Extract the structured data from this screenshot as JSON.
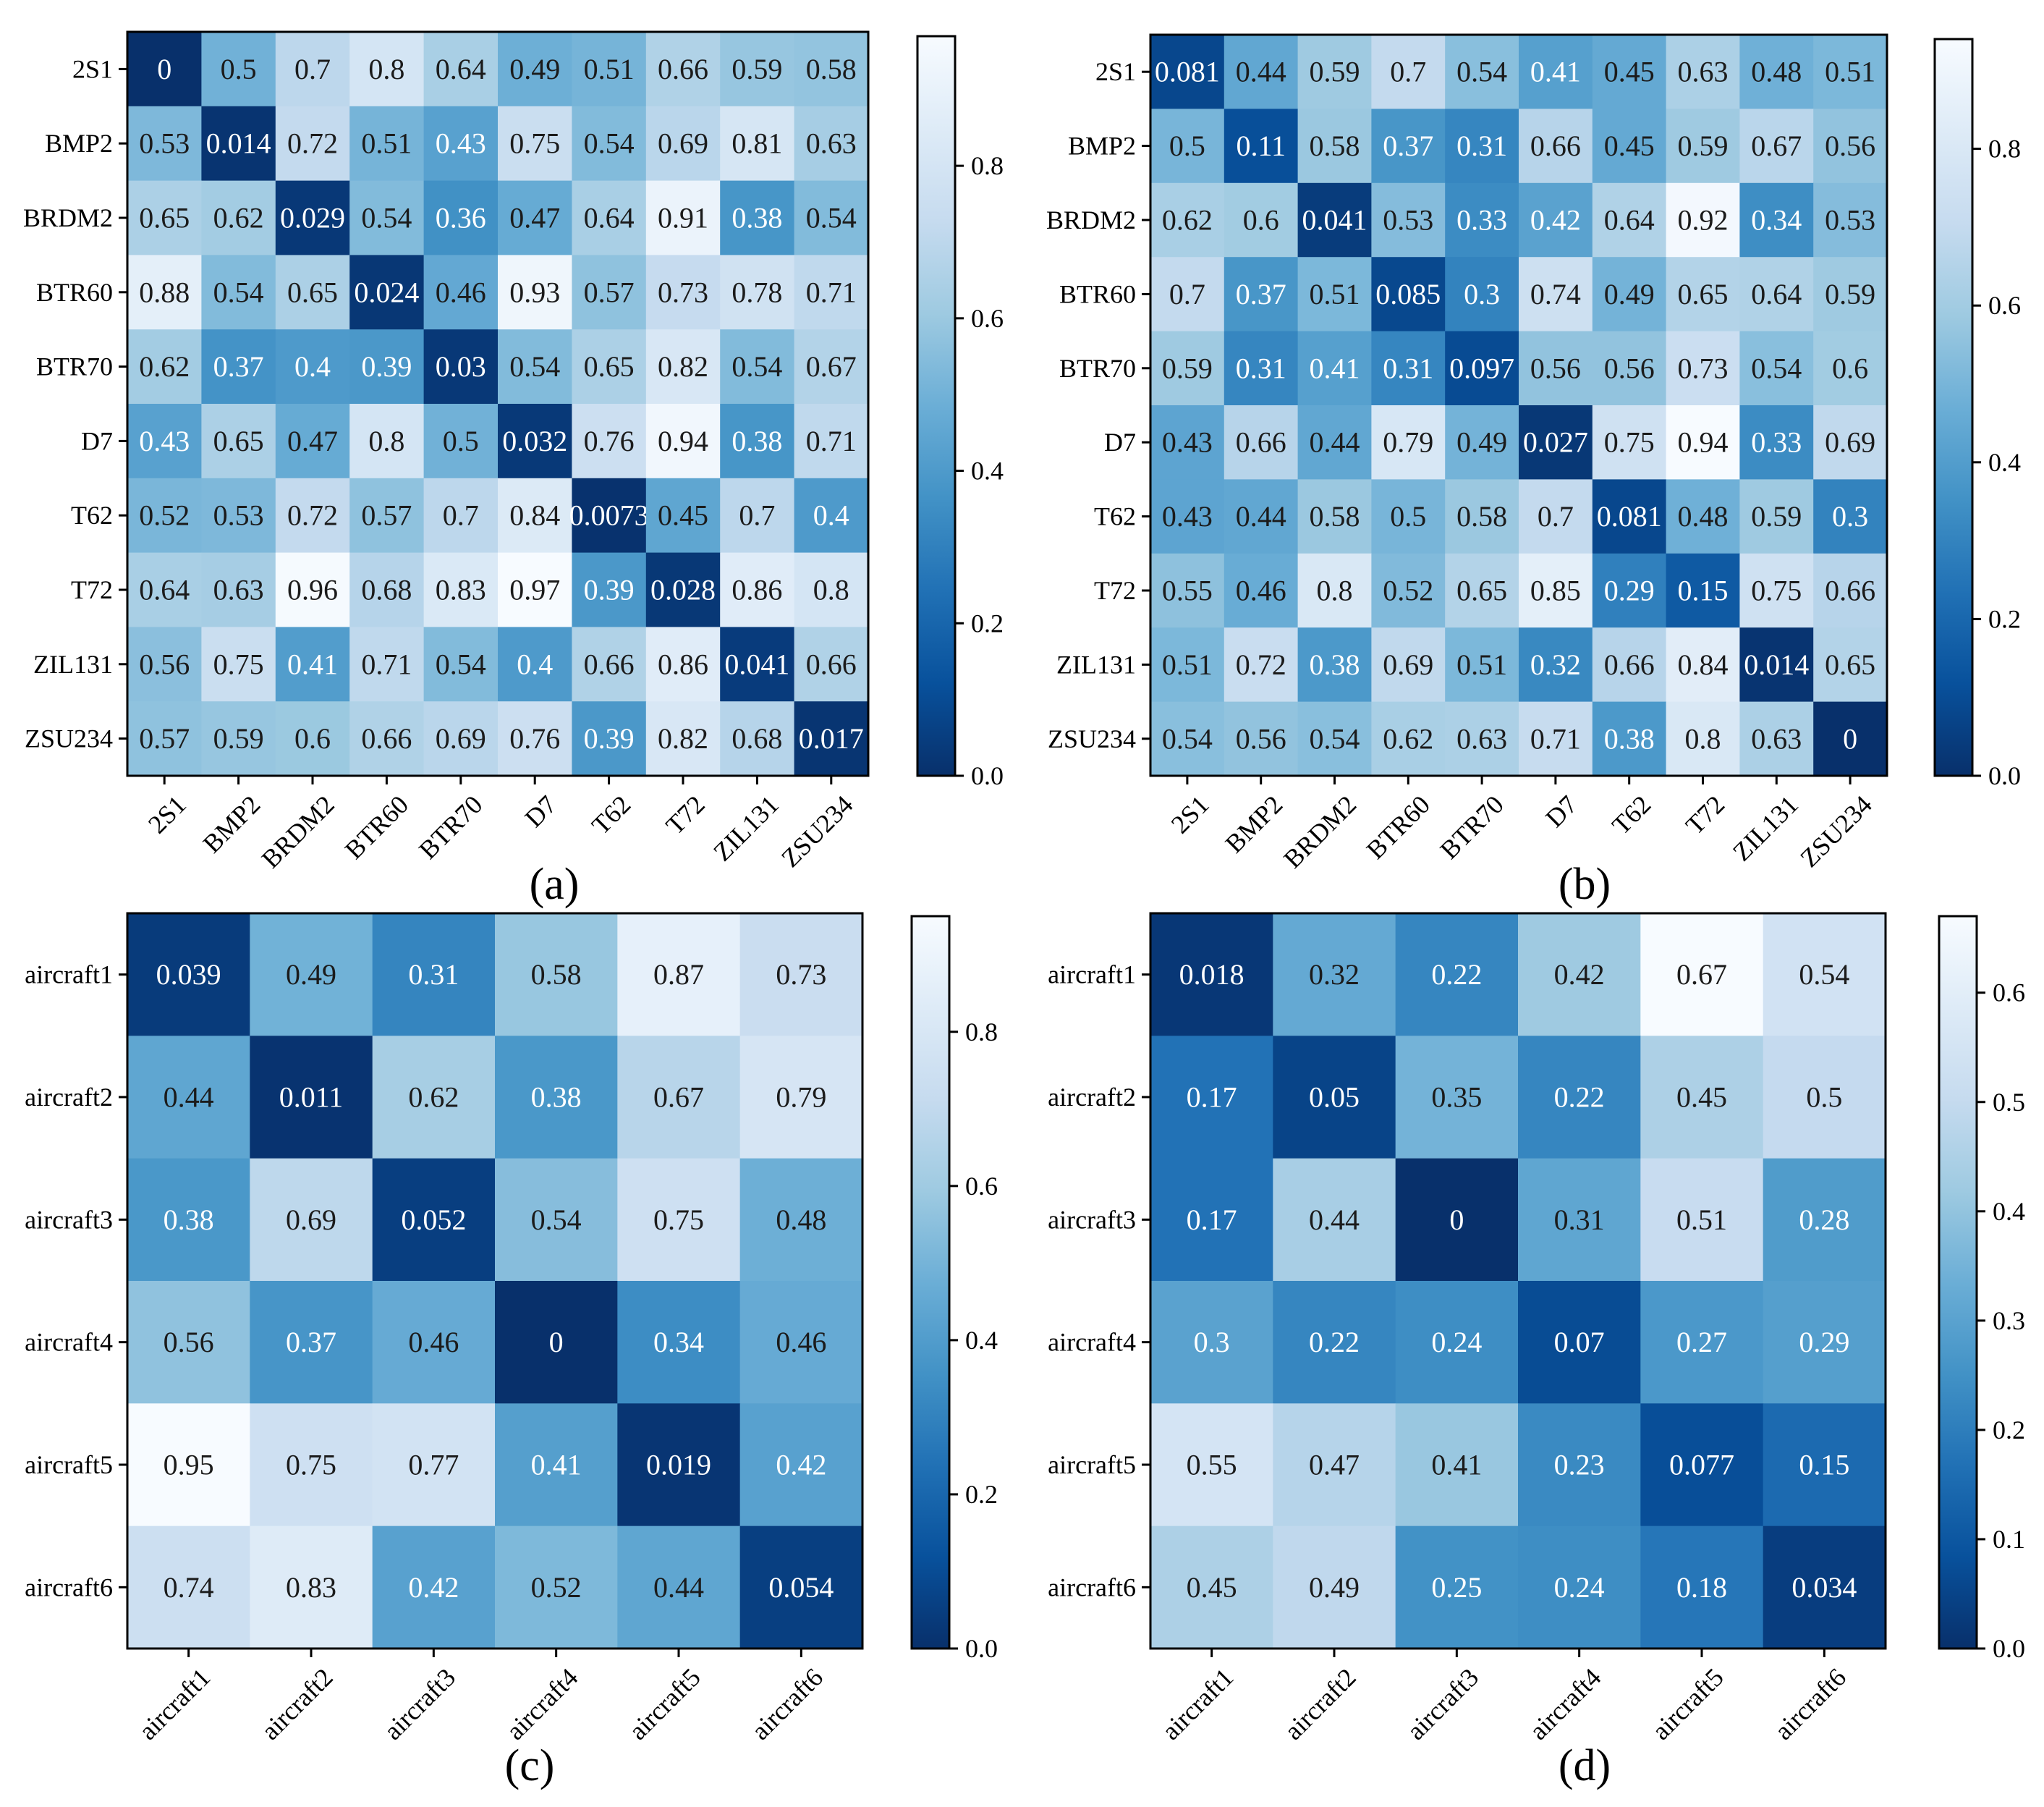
{
  "chart_data": [
    {
      "type": "heatmap",
      "panel_label": "(a)",
      "labels": [
        "2S1",
        "BMP2",
        "BRDM2",
        "BTR60",
        "BTR70",
        "D7",
        "T62",
        "T72",
        "ZIL131",
        "ZSU234"
      ],
      "values": [
        [
          "0",
          "0.5",
          "0.7",
          "0.8",
          "0.64",
          "0.49",
          "0.51",
          "0.66",
          "0.59",
          "0.58"
        ],
        [
          "0.53",
          "0.014",
          "0.72",
          "0.51",
          "0.43",
          "0.75",
          "0.54",
          "0.69",
          "0.81",
          "0.63"
        ],
        [
          "0.65",
          "0.62",
          "0.029",
          "0.54",
          "0.36",
          "0.47",
          "0.64",
          "0.91",
          "0.38",
          "0.54"
        ],
        [
          "0.88",
          "0.54",
          "0.65",
          "0.024",
          "0.46",
          "0.93",
          "0.57",
          "0.73",
          "0.78",
          "0.71"
        ],
        [
          "0.62",
          "0.37",
          "0.4",
          "0.39",
          "0.03",
          "0.54",
          "0.65",
          "0.82",
          "0.54",
          "0.67"
        ],
        [
          "0.43",
          "0.65",
          "0.47",
          "0.8",
          "0.5",
          "0.032",
          "0.76",
          "0.94",
          "0.38",
          "0.71"
        ],
        [
          "0.52",
          "0.53",
          "0.72",
          "0.57",
          "0.7",
          "0.84",
          "0.0073",
          "0.45",
          "0.7",
          "0.4"
        ],
        [
          "0.64",
          "0.63",
          "0.96",
          "0.68",
          "0.83",
          "0.97",
          "0.39",
          "0.028",
          "0.86",
          "0.8"
        ],
        [
          "0.56",
          "0.75",
          "0.41",
          "0.71",
          "0.54",
          "0.4",
          "0.66",
          "0.86",
          "0.041",
          "0.66"
        ],
        [
          "0.57",
          "0.59",
          "0.6",
          "0.66",
          "0.69",
          "0.76",
          "0.39",
          "0.82",
          "0.68",
          "0.017"
        ]
      ],
      "colorbar": {
        "min": 0,
        "max": 0.97,
        "ticks": [
          "0.0",
          "0.2",
          "0.4",
          "0.6",
          "0.8"
        ]
      }
    },
    {
      "type": "heatmap",
      "panel_label": "(b)",
      "labels": [
        "2S1",
        "BMP2",
        "BRDM2",
        "BTR60",
        "BTR70",
        "D7",
        "T62",
        "T72",
        "ZIL131",
        "ZSU234"
      ],
      "values": [
        [
          "0.081",
          "0.44",
          "0.59",
          "0.7",
          "0.54",
          "0.41",
          "0.45",
          "0.63",
          "0.48",
          "0.51"
        ],
        [
          "0.5",
          "0.11",
          "0.58",
          "0.37",
          "0.31",
          "0.66",
          "0.45",
          "0.59",
          "0.67",
          "0.56"
        ],
        [
          "0.62",
          "0.6",
          "0.041",
          "0.53",
          "0.33",
          "0.42",
          "0.64",
          "0.92",
          "0.34",
          "0.53"
        ],
        [
          "0.7",
          "0.37",
          "0.51",
          "0.085",
          "0.3",
          "0.74",
          "0.49",
          "0.65",
          "0.64",
          "0.59"
        ],
        [
          "0.59",
          "0.31",
          "0.41",
          "0.31",
          "0.097",
          "0.56",
          "0.56",
          "0.73",
          "0.54",
          "0.6"
        ],
        [
          "0.43",
          "0.66",
          "0.44",
          "0.79",
          "0.49",
          "0.027",
          "0.75",
          "0.94",
          "0.33",
          "0.69"
        ],
        [
          "0.43",
          "0.44",
          "0.58",
          "0.5",
          "0.58",
          "0.7",
          "0.081",
          "0.48",
          "0.59",
          "0.3"
        ],
        [
          "0.55",
          "0.46",
          "0.8",
          "0.52",
          "0.65",
          "0.85",
          "0.29",
          "0.15",
          "0.75",
          "0.66"
        ],
        [
          "0.51",
          "0.72",
          "0.38",
          "0.69",
          "0.51",
          "0.32",
          "0.66",
          "0.84",
          "0.014",
          "0.65"
        ],
        [
          "0.54",
          "0.56",
          "0.54",
          "0.62",
          "0.63",
          "0.71",
          "0.38",
          "0.8",
          "0.63",
          "0"
        ]
      ],
      "colorbar": {
        "min": 0,
        "max": 0.94,
        "ticks": [
          "0.0",
          "0.2",
          "0.4",
          "0.6",
          "0.8"
        ]
      }
    },
    {
      "type": "heatmap",
      "panel_label": "(c)",
      "labels": [
        "aircraft1",
        "aircraft2",
        "aircraft3",
        "aircraft4",
        "aircraft5",
        "aircraft6"
      ],
      "values": [
        [
          "0.039",
          "0.49",
          "0.31",
          "0.58",
          "0.87",
          "0.73"
        ],
        [
          "0.44",
          "0.011",
          "0.62",
          "0.38",
          "0.67",
          "0.79"
        ],
        [
          "0.38",
          "0.69",
          "0.052",
          "0.54",
          "0.75",
          "0.48"
        ],
        [
          "0.56",
          "0.37",
          "0.46",
          "0",
          "0.34",
          "0.46"
        ],
        [
          "0.95",
          "0.75",
          "0.77",
          "0.41",
          "0.019",
          "0.42"
        ],
        [
          "0.74",
          "0.83",
          "0.42",
          "0.52",
          "0.44",
          "0.054"
        ]
      ],
      "colorbar": {
        "min": 0,
        "max": 0.95,
        "ticks": [
          "0.0",
          "0.2",
          "0.4",
          "0.6",
          "0.8"
        ]
      }
    },
    {
      "type": "heatmap",
      "panel_label": "(d)",
      "labels": [
        "aircraft1",
        "aircraft2",
        "aircraft3",
        "aircraft4",
        "aircraft5",
        "aircraft6"
      ],
      "values": [
        [
          "0.018",
          "0.32",
          "0.22",
          "0.42",
          "0.67",
          "0.54"
        ],
        [
          "0.17",
          "0.05",
          "0.35",
          "0.22",
          "0.45",
          "0.5"
        ],
        [
          "0.17",
          "0.44",
          "0",
          "0.31",
          "0.51",
          "0.28"
        ],
        [
          "0.3",
          "0.22",
          "0.24",
          "0.07",
          "0.27",
          "0.29"
        ],
        [
          "0.55",
          "0.47",
          "0.41",
          "0.23",
          "0.077",
          "0.15"
        ],
        [
          "0.45",
          "0.49",
          "0.25",
          "0.24",
          "0.18",
          "0.034"
        ]
      ],
      "colorbar": {
        "min": 0,
        "max": 0.67,
        "ticks": [
          "0.0",
          "0.1",
          "0.2",
          "0.3",
          "0.4",
          "0.5",
          "0.6"
        ]
      }
    }
  ]
}
